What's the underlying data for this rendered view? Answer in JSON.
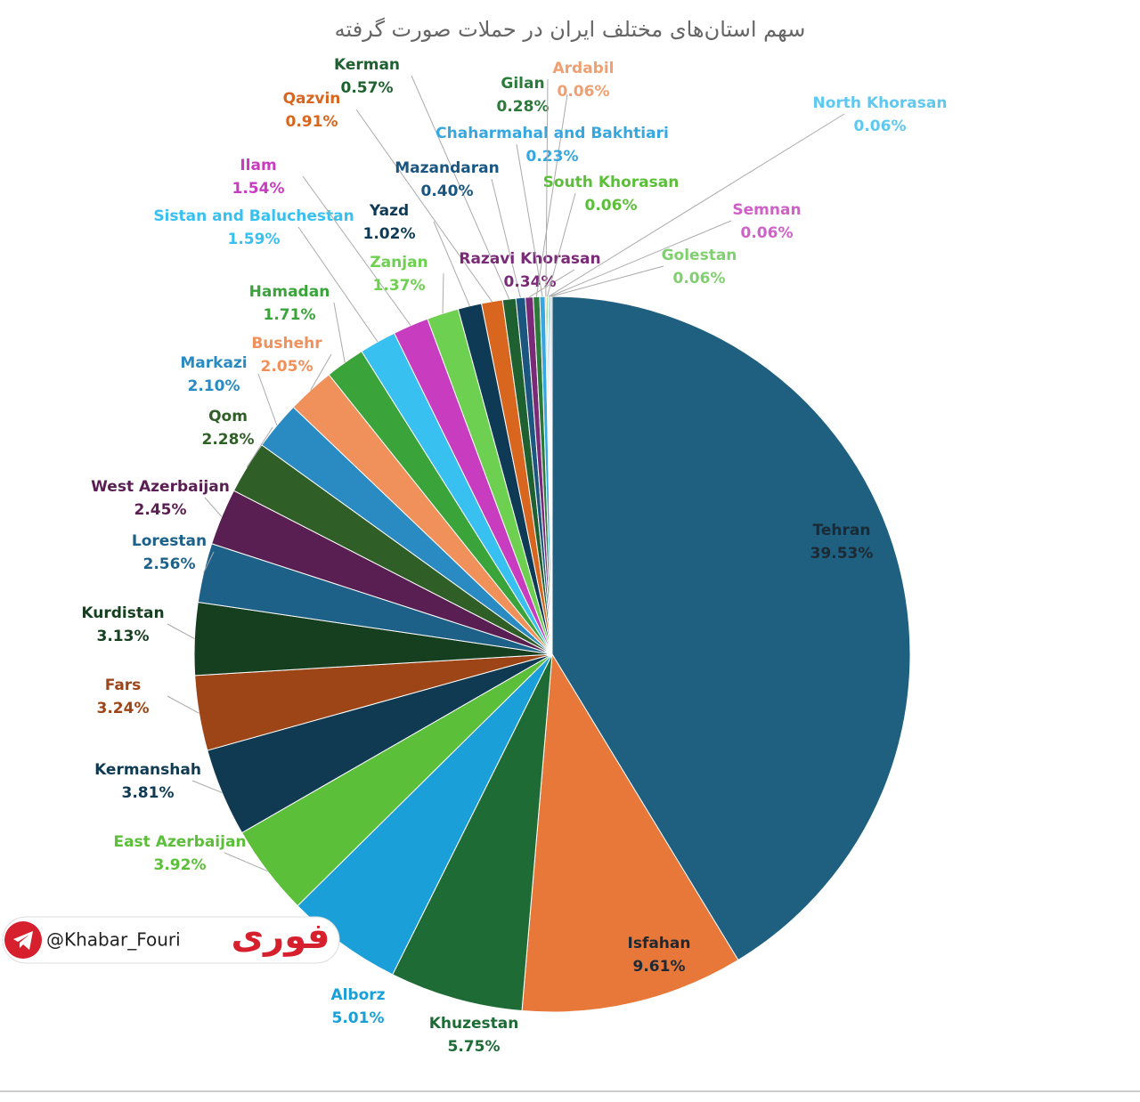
{
  "chart_data": {
    "type": "pie",
    "title": "سهم استان‌های مختلف ایران در حملات صورت گرفته",
    "categories": [
      "Tehran",
      "Isfahan",
      "Khuzestan",
      "Alborz",
      "East Azerbaijan",
      "Kermanshah",
      "Fars",
      "Kurdistan",
      "Lorestan",
      "West Azerbaijan",
      "Qom",
      "Markazi",
      "Bushehr",
      "Hamadan",
      "Sistan and Baluchestan",
      "Ilam",
      "Zanjan",
      "Yazd",
      "Qazvin",
      "Kerman",
      "Mazandaran",
      "Razavi Khorasan",
      "Gilan",
      "Chaharmahal and Bakhtiari",
      "Ardabil",
      "South Khorasan",
      "North Khorasan",
      "Semnan",
      "Golestan"
    ],
    "values": [
      39.53,
      9.61,
      5.75,
      5.01,
      3.92,
      3.81,
      3.24,
      3.13,
      2.56,
      2.45,
      2.28,
      2.1,
      2.05,
      1.71,
      1.59,
      1.54,
      1.37,
      1.02,
      0.91,
      0.57,
      0.4,
      0.34,
      0.28,
      0.23,
      0.06,
      0.06,
      0.06,
      0.06,
      0.06
    ],
    "value_labels": [
      "39.53%",
      "9.61%",
      "5.75%",
      "5.01%",
      "3.92%",
      "3.81%",
      "3.24%",
      "3.13%",
      "2.56%",
      "2.45%",
      "2.28%",
      "2.10%",
      "2.05%",
      "1.71%",
      "1.59%",
      "1.54%",
      "1.37%",
      "1.02%",
      "0.91%",
      "0.57%",
      "0.40%",
      "0.34%",
      "0.28%",
      "0.23%",
      "0.06%",
      "0.06%",
      "0.06%",
      "0.06%",
      "0.06%"
    ],
    "colors": [
      "#1f5f80",
      "#e8773a",
      "#1f6b36",
      "#1a9fd8",
      "#5cbf3a",
      "#0f3a52",
      "#9e4518",
      "#163f20",
      "#1d6189",
      "#5a1f52",
      "#2f5e26",
      "#2a8bc2",
      "#f0905a",
      "#3aa33a",
      "#38c0f0",
      "#c83cc0",
      "#6dd050",
      "#0e3a55",
      "#d9661e",
      "#1f6030",
      "#1a5680",
      "#7b2a78",
      "#2a7a3a",
      "#36a7e0",
      "#f0a070",
      "#5cbf3a",
      "#5fc8f0",
      "#d060c8",
      "#80d070"
    ]
  },
  "watermark": {
    "handle": "@Khabar_Fouri",
    "logo": "فوری"
  }
}
